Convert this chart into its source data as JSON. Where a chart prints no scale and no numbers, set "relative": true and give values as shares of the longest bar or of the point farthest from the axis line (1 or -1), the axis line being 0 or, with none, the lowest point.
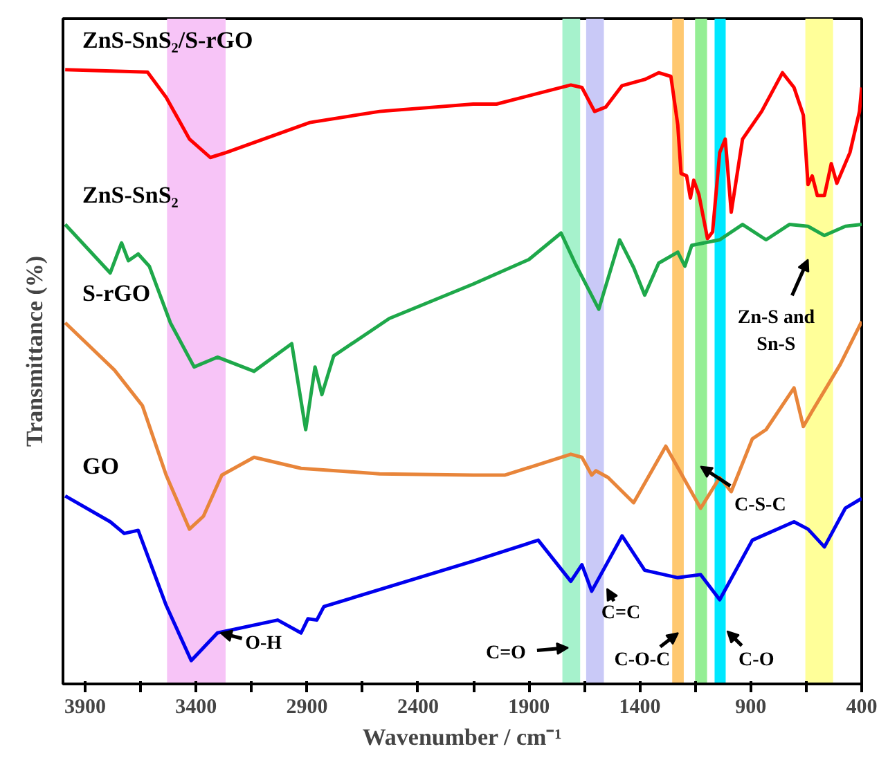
{
  "chart_data": {
    "type": "line",
    "relative": true,
    "xlabel": "Wavenumber / cm⁻¹",
    "ylabel": "Transmittance (%)",
    "xlim": [
      4000,
      400
    ],
    "xticks": [
      3900,
      {
        "value": 3650,
        "label": null
      },
      3400,
      {
        "value": 3150,
        "label": null
      },
      2900,
      {
        "value": 2650,
        "label": null
      },
      2400,
      {
        "value": 2150,
        "label": null
      },
      1900,
      {
        "value": 1650,
        "label": null
      },
      1400,
      {
        "value": 1150,
        "label": null
      },
      900,
      {
        "value": 650,
        "label": null
      },
      400
    ],
    "grid": false,
    "line_style": "solid",
    "marker": "none",
    "series": [
      {
        "name": "ZnS-SnS₂/S-rGO",
        "color": "#ff0000",
        "x": [
          3990,
          3619,
          3535,
          3430,
          3336,
          3265,
          2887,
          2573,
          2151,
          2046,
          1711,
          1661,
          1604,
          1554,
          1480,
          1378,
          1315,
          1260,
          1229,
          1214,
          1189,
          1172,
          1157,
          1134,
          1095,
          1072,
          1040,
          1015,
          988,
          937,
          851,
          757,
          705,
          663,
          642,
          623,
          600,
          568,
          537,
          512,
          453,
          410,
          400
        ],
        "values": [
          1.0,
          0.996,
          0.955,
          0.887,
          0.857,
          0.865,
          0.914,
          0.932,
          0.944,
          0.944,
          0.975,
          0.971,
          0.932,
          0.939,
          0.974,
          0.984,
          0.995,
          0.989,
          0.91,
          0.831,
          0.827,
          0.791,
          0.82,
          0.797,
          0.725,
          0.736,
          0.865,
          0.887,
          0.768,
          0.887,
          0.932,
          0.995,
          0.971,
          0.926,
          0.813,
          0.827,
          0.795,
          0.795,
          0.847,
          0.815,
          0.865,
          0.932,
          0.971
        ]
      },
      {
        "name": "ZnS-SnS₂",
        "color": "#1ea84a",
        "x": [
          3990,
          3787,
          3736,
          3705,
          3661,
          3611,
          3516,
          3409,
          3304,
          3139,
          2969,
          2906,
          2864,
          2833,
          2780,
          2529,
          2151,
          1900,
          1755,
          1692,
          1585,
          1491,
          1428,
          1378,
          1315,
          1229,
          1197,
          1166,
          1040,
          937,
          831,
          726,
          642,
          568,
          474,
          400
        ],
        "values": [
          0.748,
          0.669,
          0.718,
          0.689,
          0.7,
          0.68,
          0.588,
          0.516,
          0.532,
          0.509,
          0.554,
          0.414,
          0.516,
          0.471,
          0.534,
          0.595,
          0.651,
          0.691,
          0.734,
          0.685,
          0.61,
          0.723,
          0.678,
          0.633,
          0.685,
          0.703,
          0.68,
          0.714,
          0.723,
          0.748,
          0.723,
          0.748,
          0.745,
          0.73,
          0.745,
          0.748
        ]
      },
      {
        "name": "S-rGO",
        "color": "#e8853a",
        "x": [
          3990,
          3768,
          3642,
          3535,
          3430,
          3367,
          3284,
          3139,
          2927,
          2573,
          2151,
          2007,
          1711,
          1661,
          1617,
          1598,
          1543,
          1428,
          1283,
          1126,
          1040,
          988,
          893,
          831,
          705,
          663,
          623,
          497,
          400
        ],
        "values": [
          0.588,
          0.511,
          0.453,
          0.34,
          0.252,
          0.273,
          0.34,
          0.369,
          0.351,
          0.342,
          0.34,
          0.34,
          0.374,
          0.369,
          0.34,
          0.347,
          0.336,
          0.295,
          0.387,
          0.286,
          0.336,
          0.313,
          0.399,
          0.414,
          0.482,
          0.419,
          0.444,
          0.52,
          0.59
        ]
      },
      {
        "name": "GO",
        "color": "#0000ee",
        "x": [
          3990,
          3787,
          3724,
          3661,
          3535,
          3422,
          3304,
          3032,
          2927,
          2896,
          2856,
          2824,
          2151,
          1858,
          1711,
          1661,
          1617,
          1480,
          1378,
          1229,
          1126,
          1040,
          893,
          705,
          642,
          568,
          474,
          400
        ],
        "values": [
          0.306,
          0.264,
          0.245,
          0.25,
          0.128,
          0.038,
          0.083,
          0.104,
          0.083,
          0.106,
          0.104,
          0.126,
          0.2,
          0.234,
          0.167,
          0.194,
          0.151,
          0.241,
          0.185,
          0.173,
          0.178,
          0.137,
          0.234,
          0.264,
          0.252,
          0.223,
          0.286,
          0.302
        ]
      }
    ],
    "bands": [
      {
        "axis": "x",
        "from": 3531,
        "to": 3267,
        "color": "#f7c4f7"
      },
      {
        "axis": "x",
        "from": 1749,
        "to": 1669,
        "color": "#a6f2cc"
      },
      {
        "axis": "x",
        "from": 1642,
        "to": 1562,
        "color": "#c9c9f7"
      },
      {
        "axis": "x",
        "from": 1254,
        "to": 1202,
        "color": "#ffc870"
      },
      {
        "axis": "x",
        "from": 1151,
        "to": 1097,
        "color": "#94ee94"
      },
      {
        "axis": "x",
        "from": 1063,
        "to": 1013,
        "color": "#00e8ff"
      },
      {
        "axis": "x",
        "from": 654,
        "to": 529,
        "color": "#ffff99"
      }
    ],
    "annotations": [
      {
        "text": "O-H",
        "x": 3290,
        "y": 0.083
      },
      {
        "text": "C=O",
        "x": 1723,
        "y": 0.059
      },
      {
        "text": "C=C",
        "x": 1548,
        "y": 0.155
      },
      {
        "text": "C-O-C",
        "x": 1227,
        "y": 0.083
      },
      {
        "text": "C-O",
        "x": 1006,
        "y": 0.086
      },
      {
        "text": "C-S-C",
        "x": 1126,
        "y": 0.354
      },
      {
        "text": "Zn-S and\nSn-S",
        "x": 642,
        "y": 0.691
      }
    ]
  }
}
